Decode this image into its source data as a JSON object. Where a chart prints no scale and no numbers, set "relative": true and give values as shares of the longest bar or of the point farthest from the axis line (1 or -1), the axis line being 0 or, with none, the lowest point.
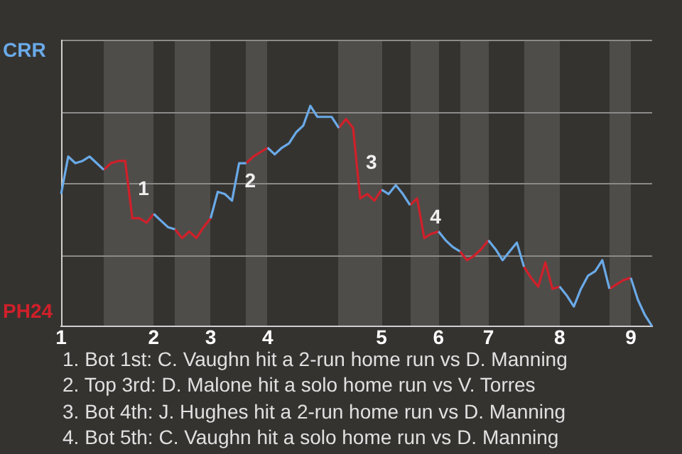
{
  "chart_data": {
    "type": "line",
    "relative": true,
    "categories": [
      "1",
      null,
      null,
      null,
      null,
      null,
      null,
      null,
      null,
      null,
      null,
      null,
      null,
      "2",
      null,
      null,
      null,
      null,
      null,
      null,
      null,
      "3",
      null,
      null,
      null,
      null,
      null,
      null,
      null,
      "4",
      null,
      null,
      null,
      null,
      null,
      null,
      null,
      null,
      null,
      null,
      null,
      null,
      null,
      null,
      null,
      "5",
      null,
      null,
      null,
      null,
      null,
      null,
      null,
      "6",
      null,
      null,
      null,
      null,
      null,
      null,
      "7",
      null,
      null,
      null,
      null,
      null,
      null,
      null,
      null,
      null,
      "8",
      null,
      null,
      null,
      null,
      null,
      null,
      null,
      null,
      null,
      "9",
      null,
      null,
      null
    ],
    "grid": "y",
    "legend": "left",
    "marker": "none",
    "series": [
      {
        "name": "CRR",
        "color": "#6aaae8",
        "values": [
          0.6,
          0.77,
          0.74,
          0.75,
          0.77,
          0.74,
          0.71,
          null,
          null,
          null,
          null,
          null,
          null,
          0.51,
          0.48,
          0.45,
          0.44,
          null,
          null,
          null,
          null,
          0.49,
          0.61,
          0.6,
          0.57,
          0.74,
          0.74,
          null,
          null,
          0.81,
          0.78,
          0.81,
          0.83,
          0.88,
          0.91,
          1,
          0.95,
          0.95,
          0.95,
          0.9,
          null,
          null,
          null,
          null,
          null,
          0.62,
          0.6,
          0.64,
          0.6,
          0.55,
          null,
          null,
          null,
          0.43,
          0.39,
          0.36,
          0.34,
          null,
          null,
          null,
          0.39,
          0.35,
          0.3,
          0.34,
          0.38,
          0.27,
          null,
          null,
          null,
          null,
          0.18,
          0.14,
          0.09,
          0.17,
          0.23,
          0.25,
          0.3,
          0.17,
          null,
          null,
          0.22,
          0.12,
          0.05,
          0
        ]
      },
      {
        "name": "PH24",
        "color": "#d0202a",
        "values": [
          null,
          null,
          null,
          null,
          null,
          null,
          0.71,
          0.74,
          0.75,
          0.75,
          0.49,
          0.49,
          0.47,
          0.51,
          null,
          null,
          0.44,
          0.4,
          0.43,
          0.4,
          0.45,
          0.49,
          null,
          null,
          null,
          null,
          0.74,
          0.77,
          0.79,
          0.81,
          null,
          null,
          null,
          null,
          null,
          null,
          null,
          null,
          null,
          0.9,
          0.94,
          0.9,
          0.58,
          0.6,
          0.57,
          0.62,
          null,
          null,
          null,
          0.55,
          0.58,
          0.4,
          0.42,
          0.43,
          null,
          null,
          0.34,
          0.3,
          0.32,
          0.35,
          0.39,
          null,
          null,
          null,
          null,
          0.27,
          0.22,
          0.18,
          0.29,
          0.17,
          0.18,
          null,
          null,
          null,
          null,
          null,
          null,
          0.17,
          0.19,
          0.21,
          0.22,
          null,
          null,
          null
        ]
      }
    ],
    "annotations": [
      {
        "text": "1",
        "y": 0.49
      },
      {
        "text": "2",
        "y": 0.74
      },
      {
        "text": "3",
        "y": 0.58
      },
      {
        "text": "4",
        "y": 0.4
      },
      "1. Bot 1st: C. Vaughn hit a 2-run home run vs D. Manning",
      "2. Top 3rd: D. Malone hit a solo home run vs V. Torres",
      "3. Bot 4th: J. Hughes hit a 2-run home run vs D. Manning",
      "4. Bot 5th: C. Vaughn hit a solo home run vs D. Manning"
    ]
  }
}
